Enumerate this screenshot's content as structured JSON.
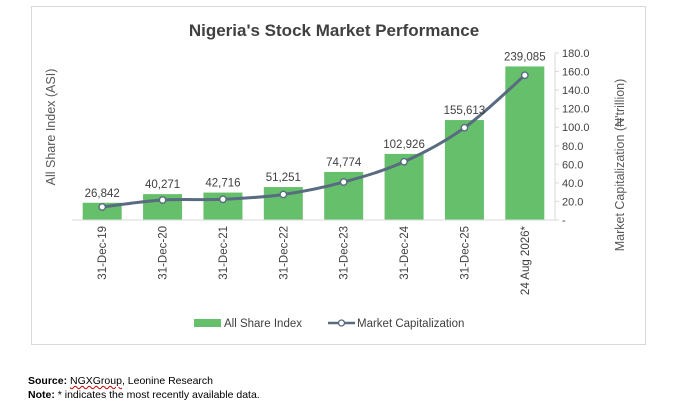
{
  "chart_data": {
    "type": "bar+line",
    "title": "Nigeria's Stock Market Performance",
    "ylabel_left": "All Share Index (ASI)",
    "ylabel_right": "Market Capitalization (₦'trillion)",
    "categories": [
      "31-Dec-19",
      "31-Dec-20",
      "31-Dec-21",
      "31-Dec-22",
      "31-Dec-23",
      "31-Dec-24",
      "31-Dec-25",
      "24 Aug 2026*"
    ],
    "series": [
      {
        "name": "All Share Index",
        "kind": "bar",
        "axis": "left",
        "values": [
          26842,
          40271,
          42716,
          51251,
          74774,
          102926,
          155613,
          239085
        ],
        "labels": [
          "26,842",
          "40,271",
          "42,716",
          "51,251",
          "74,774",
          "102,926",
          "155,613",
          "239,085"
        ],
        "color": "#66bf6a"
      },
      {
        "name": "Market Capitalization",
        "kind": "line",
        "axis": "right",
        "values": [
          14.0,
          21.5,
          22.3,
          27.5,
          40.9,
          62.8,
          99.4,
          156.0
        ],
        "color": "#596b80"
      }
    ],
    "right_axis": {
      "ylim": [
        0,
        180
      ],
      "ticks": [
        "-",
        "20.0",
        "40.0",
        "60.0",
        "80.0",
        "100.0",
        "120.0",
        "140.0",
        "160.0",
        "180.0"
      ]
    },
    "left_axis_max": 260000,
    "legend_position": "bottom",
    "grid": false
  },
  "footnotes": {
    "source_label": "Source:",
    "source_ngx": "NGXGroup",
    "source_rest": ", Leonine Research",
    "note_label": "Note:",
    "note_text": " * indicates the most recently available data."
  }
}
